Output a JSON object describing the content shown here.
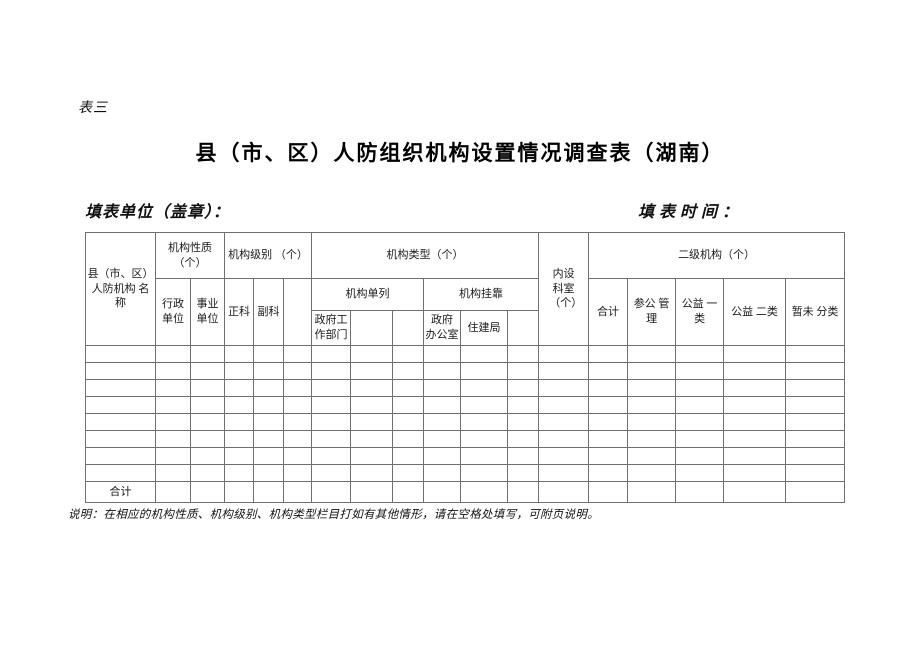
{
  "page": {
    "table_no": "表三",
    "title": "县（市、区）人防组织机构设置情况调查表（湖南）",
    "fill_unit_label": "填表单位（盖章）：",
    "fill_time_label": "填表时间：",
    "note": "说明：在相应的机构性质、机构级别、机构类型栏目打如有其他情形，请在空格处填写，可附页说明。"
  },
  "table": {
    "header": {
      "name_col": "县（市、区）人防机构 名称",
      "org_nature": "机构性质（个）",
      "org_nature_sub": [
        "行政单位",
        "事业单位"
      ],
      "org_level": "机构级别 （个）",
      "org_level_sub": [
        "正科",
        "副科",
        ""
      ],
      "org_type": "机构类型（个）",
      "org_type_groups": [
        {
          "label": "机构单列",
          "sub": [
            "政府工作部门",
            "",
            ""
          ]
        },
        {
          "label": "机构挂靠",
          "sub": [
            "政府 办公室",
            "住建局",
            ""
          ]
        }
      ],
      "internal_dept": "内设科室（个）",
      "secondary_org": "二级机构（个）",
      "secondary_sub": [
        "合计",
        "参公 管理",
        "公益 一类",
        "公益 二类",
        "暂未 分类"
      ]
    },
    "body": {
      "empty_row_count": 8,
      "total_label": "合计"
    }
  }
}
